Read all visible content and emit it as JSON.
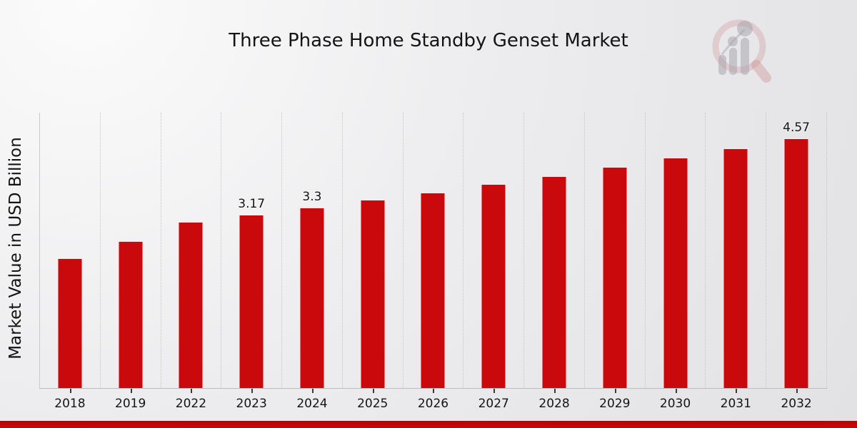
{
  "header": {
    "title": "Three Phase Home Standby Genset Market"
  },
  "chart_data": {
    "type": "bar",
    "title": "Three Phase Home Standby Genset Market",
    "xlabel": "",
    "ylabel": "Market Value in USD Billion",
    "categories": [
      "2018",
      "2019",
      "2022",
      "2023",
      "2024",
      "2025",
      "2026",
      "2027",
      "2028",
      "2029",
      "2030",
      "2031",
      "2032"
    ],
    "values": [
      2.37,
      2.69,
      3.04,
      3.17,
      3.3,
      3.44,
      3.58,
      3.73,
      3.88,
      4.04,
      4.21,
      4.39,
      4.57
    ],
    "point_labels": [
      "",
      "",
      "",
      "3.17",
      "3.3",
      "",
      "",
      "",
      "",
      "",
      "",
      "",
      "4.57"
    ],
    "ylim": [
      0,
      5.05
    ],
    "grid": "vertical dotted category separators",
    "legend_position": "none",
    "bar_color": "#c9090c"
  },
  "colors": {
    "bar": "#c9090c",
    "bottom_accent": "#c40407",
    "background_light": "#fbfbfb",
    "background_dark": "#e2e2e4",
    "gridline": "#c6c6c8",
    "text": "#141414"
  },
  "branding": {
    "logo_icon": "magnifier-bar-chart-watermark"
  }
}
